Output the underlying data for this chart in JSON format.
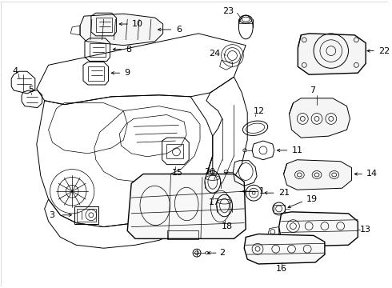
{
  "background_color": "#ffffff",
  "line_color": "#000000",
  "figsize": [
    4.9,
    3.6
  ],
  "dpi": 100,
  "lw_thick": 1.0,
  "lw_med": 0.7,
  "lw_thin": 0.5
}
